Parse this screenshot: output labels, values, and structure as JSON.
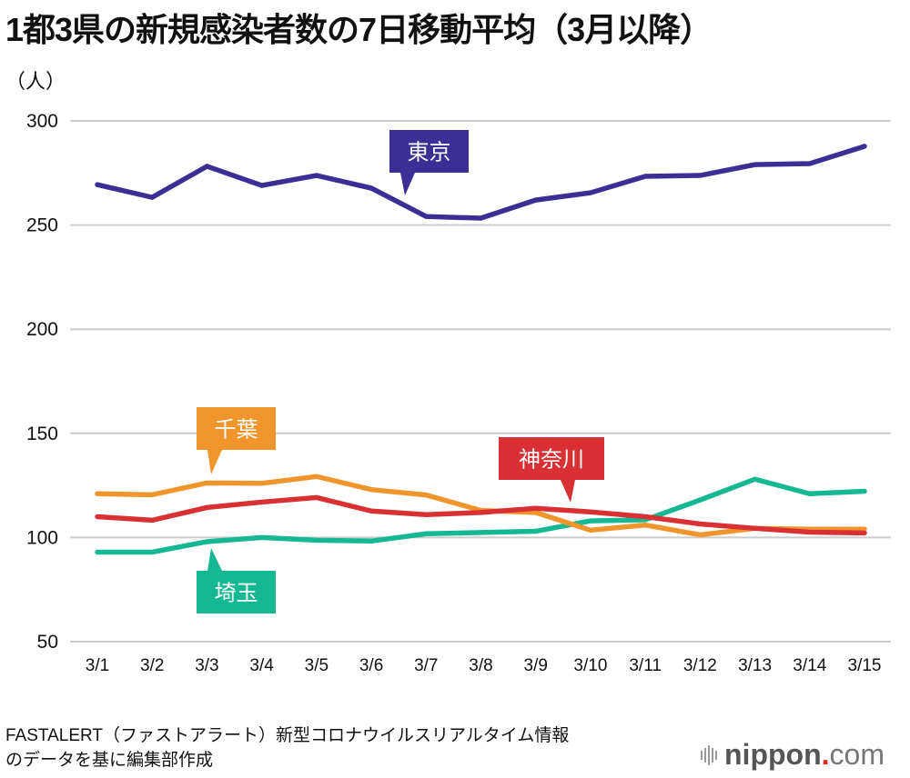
{
  "chart_data": {
    "type": "line",
    "title": "1都3県の新規感染者数の7日移動平均（3月以降）",
    "ylabel": "（人）",
    "xlabel": "",
    "ylim": [
      50,
      300
    ],
    "yticks": [
      50,
      100,
      150,
      200,
      250,
      300
    ],
    "grid": true,
    "categories": [
      "3/1",
      "3/2",
      "3/3",
      "3/4",
      "3/5",
      "3/6",
      "3/7",
      "3/8",
      "3/9",
      "3/10",
      "3/11",
      "3/12",
      "3/13",
      "3/14",
      "3/15"
    ],
    "series": [
      {
        "name": "東京",
        "color": "#3b2f96",
        "label_anchor_index": 6,
        "values": [
          269.4,
          263.3,
          278.2,
          269.0,
          273.8,
          267.7,
          254.1,
          253.3,
          262.0,
          265.5,
          273.4,
          273.8,
          279.0,
          279.5,
          287.8
        ]
      },
      {
        "name": "千葉",
        "color": "#f0952c",
        "label_anchor_index": 2,
        "values": [
          121.0,
          120.5,
          126.2,
          126.0,
          129.3,
          123.0,
          120.4,
          113.0,
          112.0,
          103.5,
          106.0,
          101.3,
          104.4,
          104.0,
          104.0
        ]
      },
      {
        "name": "神奈川",
        "color": "#d93034",
        "label_anchor_index": 9,
        "values": [
          110.0,
          108.3,
          114.4,
          117.0,
          119.2,
          112.7,
          111.0,
          112.0,
          114.0,
          112.3,
          110.0,
          106.5,
          104.4,
          102.6,
          102.2
        ]
      },
      {
        "name": "埼玉",
        "color": "#16b891",
        "label_anchor_index": 2,
        "values": [
          93.0,
          93.0,
          98.0,
          100.0,
          98.7,
          98.3,
          101.8,
          102.4,
          103.0,
          108.0,
          108.5,
          118.0,
          128.0,
          121.0,
          122.2
        ]
      }
    ],
    "legend": "inline-callouts"
  },
  "source": {
    "line1": "FASTALERT（ファストアラート）新型コロナウイルスリアルタイム情報",
    "line2": "のデータを基に編集部作成"
  },
  "logo": {
    "name": "nippon",
    "dot": ".",
    "tld": "com"
  }
}
